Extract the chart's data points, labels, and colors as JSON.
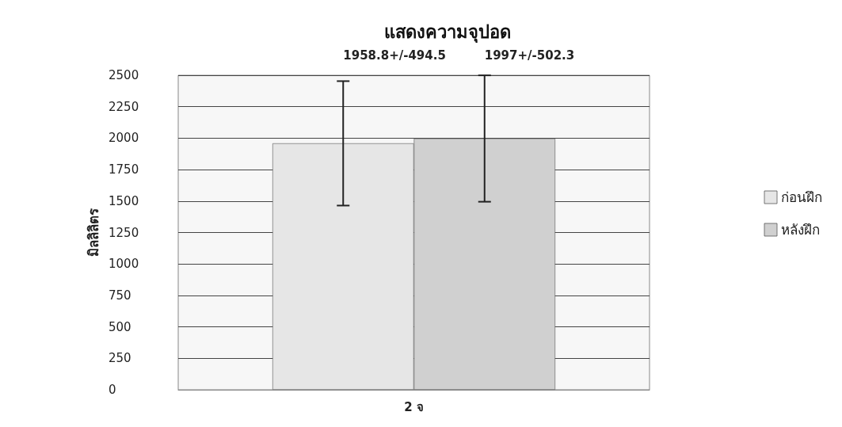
{
  "chart_data": {
    "type": "bar",
    "title": "แสดงความจุปอด",
    "ylabel": "มิลลิลิตร",
    "categories": [
      "2 จ"
    ],
    "series": [
      {
        "name": "ก่อนฝึก",
        "color": "#e6e6e6",
        "values": [
          1958.8
        ],
        "errors": [
          494.5
        ]
      },
      {
        "name": "หลังฝึก",
        "color": "#d0d0d0",
        "values": [
          1997
        ],
        "errors": [
          502.3
        ]
      }
    ],
    "annotations": [
      "1958.8+/-494.5",
      "1997+/-502.3"
    ],
    "ylim": [
      0,
      2500
    ],
    "yticks": [
      0,
      250,
      500,
      750,
      1000,
      1250,
      1500,
      1750,
      2000,
      2250,
      2500
    ],
    "grid": "y",
    "legend": "right"
  }
}
